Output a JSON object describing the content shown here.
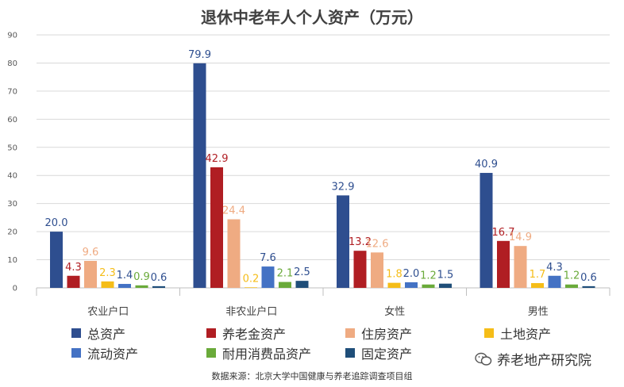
{
  "chart_data": {
    "type": "bar",
    "title": "退休中老年人个人资产（万元）",
    "xlabel": "",
    "ylabel": "",
    "ylim": [
      0,
      90
    ],
    "yticks": [
      0,
      10,
      20,
      30,
      40,
      50,
      60,
      70,
      80,
      90
    ],
    "grid": true,
    "legend_position": "bottom",
    "categories": [
      "农业户口",
      "非农业户口",
      "女性",
      "男性"
    ],
    "series": [
      {
        "name": "总资产",
        "color": "#2E4E8F",
        "label_color": "#2E4E8F",
        "values": [
          20.0,
          79.9,
          32.9,
          40.9
        ]
      },
      {
        "name": "养老金资产",
        "color": "#B01E23",
        "label_color": "#B01E23",
        "values": [
          4.3,
          42.9,
          13.2,
          16.7
        ]
      },
      {
        "name": "住房资产",
        "color": "#EFAB82",
        "label_color": "#EFAB82",
        "values": [
          9.6,
          24.4,
          12.6,
          14.9
        ]
      },
      {
        "name": "土地资产",
        "color": "#F5BD18",
        "label_color": "#F5BD18",
        "values": [
          2.3,
          0.2,
          1.8,
          1.7
        ]
      },
      {
        "name": "流动资产",
        "color": "#4472C4",
        "label_color": "#2E4E8F",
        "values": [
          1.4,
          7.6,
          2.0,
          4.3
        ]
      },
      {
        "name": "耐用消费品资产",
        "color": "#6AAA3A",
        "label_color": "#6AAA3A",
        "values": [
          0.9,
          2.1,
          1.2,
          1.2
        ]
      },
      {
        "name": "固定资产",
        "color": "#1F4E79",
        "label_color": "#2E4E8F",
        "values": [
          0.6,
          2.5,
          1.5,
          0.6
        ]
      }
    ]
  },
  "source_text": "数据来源：北京大学中国健康与养老追踪调查项目组",
  "watermark_text": "养老地产研究院"
}
